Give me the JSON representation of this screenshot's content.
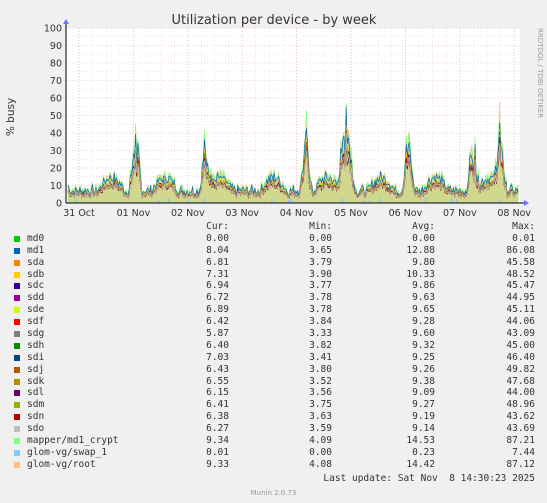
{
  "chart_data": {
    "type": "line",
    "title": "Utilization per device - by week",
    "ylabel": "% busy",
    "side_label": "RRDTOOL / TOBI OETIKER",
    "ylim": [
      0,
      100
    ],
    "yticks": [
      0,
      10,
      20,
      30,
      40,
      50,
      60,
      70,
      80,
      90,
      100
    ],
    "xticks": [
      "31 Oct",
      "01 Nov",
      "02 Nov",
      "03 Nov",
      "04 Nov",
      "05 Nov",
      "06 Nov",
      "07 Nov",
      "08 Nov"
    ],
    "legend_headers": {
      "cur": "Cur:",
      "min": "Min:",
      "avg": "Avg:",
      "max": "Max:"
    },
    "series": [
      {
        "name": "md0",
        "color": "#00cc00",
        "cur": "0.00",
        "min": "0.00",
        "avg": "0.00",
        "max": "0.01"
      },
      {
        "name": "md1",
        "color": "#0066b3",
        "cur": "8.04",
        "min": "3.65",
        "avg": "12.88",
        "max": "86.08"
      },
      {
        "name": "sda",
        "color": "#ff8000",
        "cur": "6.81",
        "min": "3.79",
        "avg": "9.80",
        "max": "45.58"
      },
      {
        "name": "sdb",
        "color": "#ffcc00",
        "cur": "7.31",
        "min": "3.90",
        "avg": "10.33",
        "max": "48.52"
      },
      {
        "name": "sdc",
        "color": "#330099",
        "cur": "6.94",
        "min": "3.77",
        "avg": "9.86",
        "max": "45.47"
      },
      {
        "name": "sdd",
        "color": "#990099",
        "cur": "6.72",
        "min": "3.78",
        "avg": "9.63",
        "max": "44.95"
      },
      {
        "name": "sde",
        "color": "#ccff00",
        "cur": "6.89",
        "min": "3.78",
        "avg": "9.65",
        "max": "45.11"
      },
      {
        "name": "sdf",
        "color": "#ff0000",
        "cur": "6.42",
        "min": "3.84",
        "avg": "9.28",
        "max": "44.06"
      },
      {
        "name": "sdg",
        "color": "#808080",
        "cur": "5.87",
        "min": "3.33",
        "avg": "9.60",
        "max": "43.09"
      },
      {
        "name": "sdh",
        "color": "#008f00",
        "cur": "6.40",
        "min": "3.82",
        "avg": "9.32",
        "max": "45.00"
      },
      {
        "name": "sdi",
        "color": "#00487d",
        "cur": "7.03",
        "min": "3.41",
        "avg": "9.25",
        "max": "46.40"
      },
      {
        "name": "sdj",
        "color": "#b35a00",
        "cur": "6.43",
        "min": "3.80",
        "avg": "9.26",
        "max": "49.82"
      },
      {
        "name": "sdk",
        "color": "#b38f00",
        "cur": "6.55",
        "min": "3.52",
        "avg": "9.38",
        "max": "47.68"
      },
      {
        "name": "sdl",
        "color": "#6b006b",
        "cur": "6.15",
        "min": "3.56",
        "avg": "9.09",
        "max": "44.00"
      },
      {
        "name": "sdm",
        "color": "#8fb300",
        "cur": "6.41",
        "min": "3.75",
        "avg": "9.27",
        "max": "48.96"
      },
      {
        "name": "sdn",
        "color": "#b30000",
        "cur": "6.38",
        "min": "3.63",
        "avg": "9.19",
        "max": "43.62"
      },
      {
        "name": "sdo",
        "color": "#bebebe",
        "cur": "6.27",
        "min": "3.59",
        "avg": "9.14",
        "max": "43.69"
      },
      {
        "name": "mapper/md1_crypt",
        "color": "#80ff80",
        "cur": "9.34",
        "min": "4.09",
        "avg": "14.53",
        "max": "87.21"
      },
      {
        "name": "glom-vg/swap_1",
        "color": "#80c9ff",
        "cur": "0.01",
        "min": "0.00",
        "avg": "0.23",
        "max": "7.44"
      },
      {
        "name": "glom-vg/root",
        "color": "#ffc080",
        "cur": "9.33",
        "min": "4.08",
        "avg": "14.42",
        "max": "87.12"
      }
    ]
  },
  "footer": {
    "last_update": "Last update: Sat Nov  8 14:30:23 2025",
    "munin_version": "Munin 2.0.73"
  }
}
